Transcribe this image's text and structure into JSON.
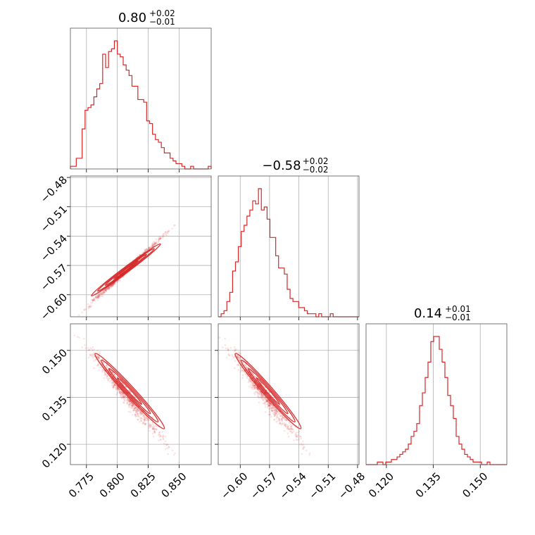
{
  "chart_data": {
    "type": "corner",
    "color": "#d62728",
    "grid": true,
    "parameters": [
      {
        "title_value": "0.80",
        "title_plus": "+0.02",
        "title_minus": "−0.01",
        "range": [
          0.762,
          0.876
        ],
        "ticks": [
          0.775,
          0.8,
          0.825,
          0.85
        ],
        "tick_labels": [
          "0.775",
          "0.800",
          "0.825",
          "0.850"
        ],
        "hist_counts": [
          1,
          1,
          4,
          4,
          15,
          22,
          23,
          24,
          27,
          30,
          32,
          43,
          38,
          44,
          45,
          48,
          43,
          42,
          39,
          37,
          35,
          31,
          31,
          26,
          26,
          25,
          18,
          17,
          13,
          11,
          10,
          8,
          6,
          6,
          4,
          3,
          2,
          2,
          1,
          0,
          0,
          1,
          0,
          0,
          0,
          0,
          0,
          1
        ]
      },
      {
        "title_value": "−0.58",
        "title_plus": "+0.02",
        "title_minus": "−0.02",
        "range": [
          -0.6225,
          -0.4785
        ],
        "ticks": [
          -0.6,
          -0.57,
          -0.54,
          -0.51,
          -0.48
        ],
        "tick_labels": [
          "−0.60",
          "−0.57",
          "−0.54",
          "−0.51",
          "−0.48"
        ],
        "hist_counts": [
          0,
          1,
          2,
          5,
          8,
          15,
          18,
          23,
          28,
          30,
          33,
          35,
          38,
          37,
          42,
          35,
          36,
          32,
          26,
          26,
          20,
          16,
          16,
          14,
          9,
          6,
          5,
          5,
          3,
          3,
          2,
          1,
          1,
          1,
          0,
          1,
          0,
          0,
          0,
          1,
          0,
          0,
          0,
          0,
          0,
          0,
          0,
          0,
          0
        ]
      },
      {
        "title_value": "0.14",
        "title_plus": "+0.01",
        "title_minus": "−0.01",
        "range": [
          0.1135,
          0.1585
        ],
        "ticks": [
          0.12,
          0.135,
          0.15
        ],
        "tick_labels": [
          "0.120",
          "0.135",
          "0.150"
        ],
        "hist_counts": [
          0,
          0,
          0,
          0,
          1,
          1,
          0,
          1,
          1,
          2,
          2,
          3,
          4,
          5,
          6,
          8,
          11,
          13,
          16,
          23,
          28,
          34,
          40,
          48,
          50,
          50,
          45,
          40,
          34,
          27,
          23,
          18,
          11,
          8,
          6,
          4,
          3,
          2,
          1,
          1,
          1,
          0,
          0,
          1,
          0,
          0,
          0,
          0,
          0,
          0
        ]
      }
    ],
    "ylim_marginal_max": 47
  }
}
